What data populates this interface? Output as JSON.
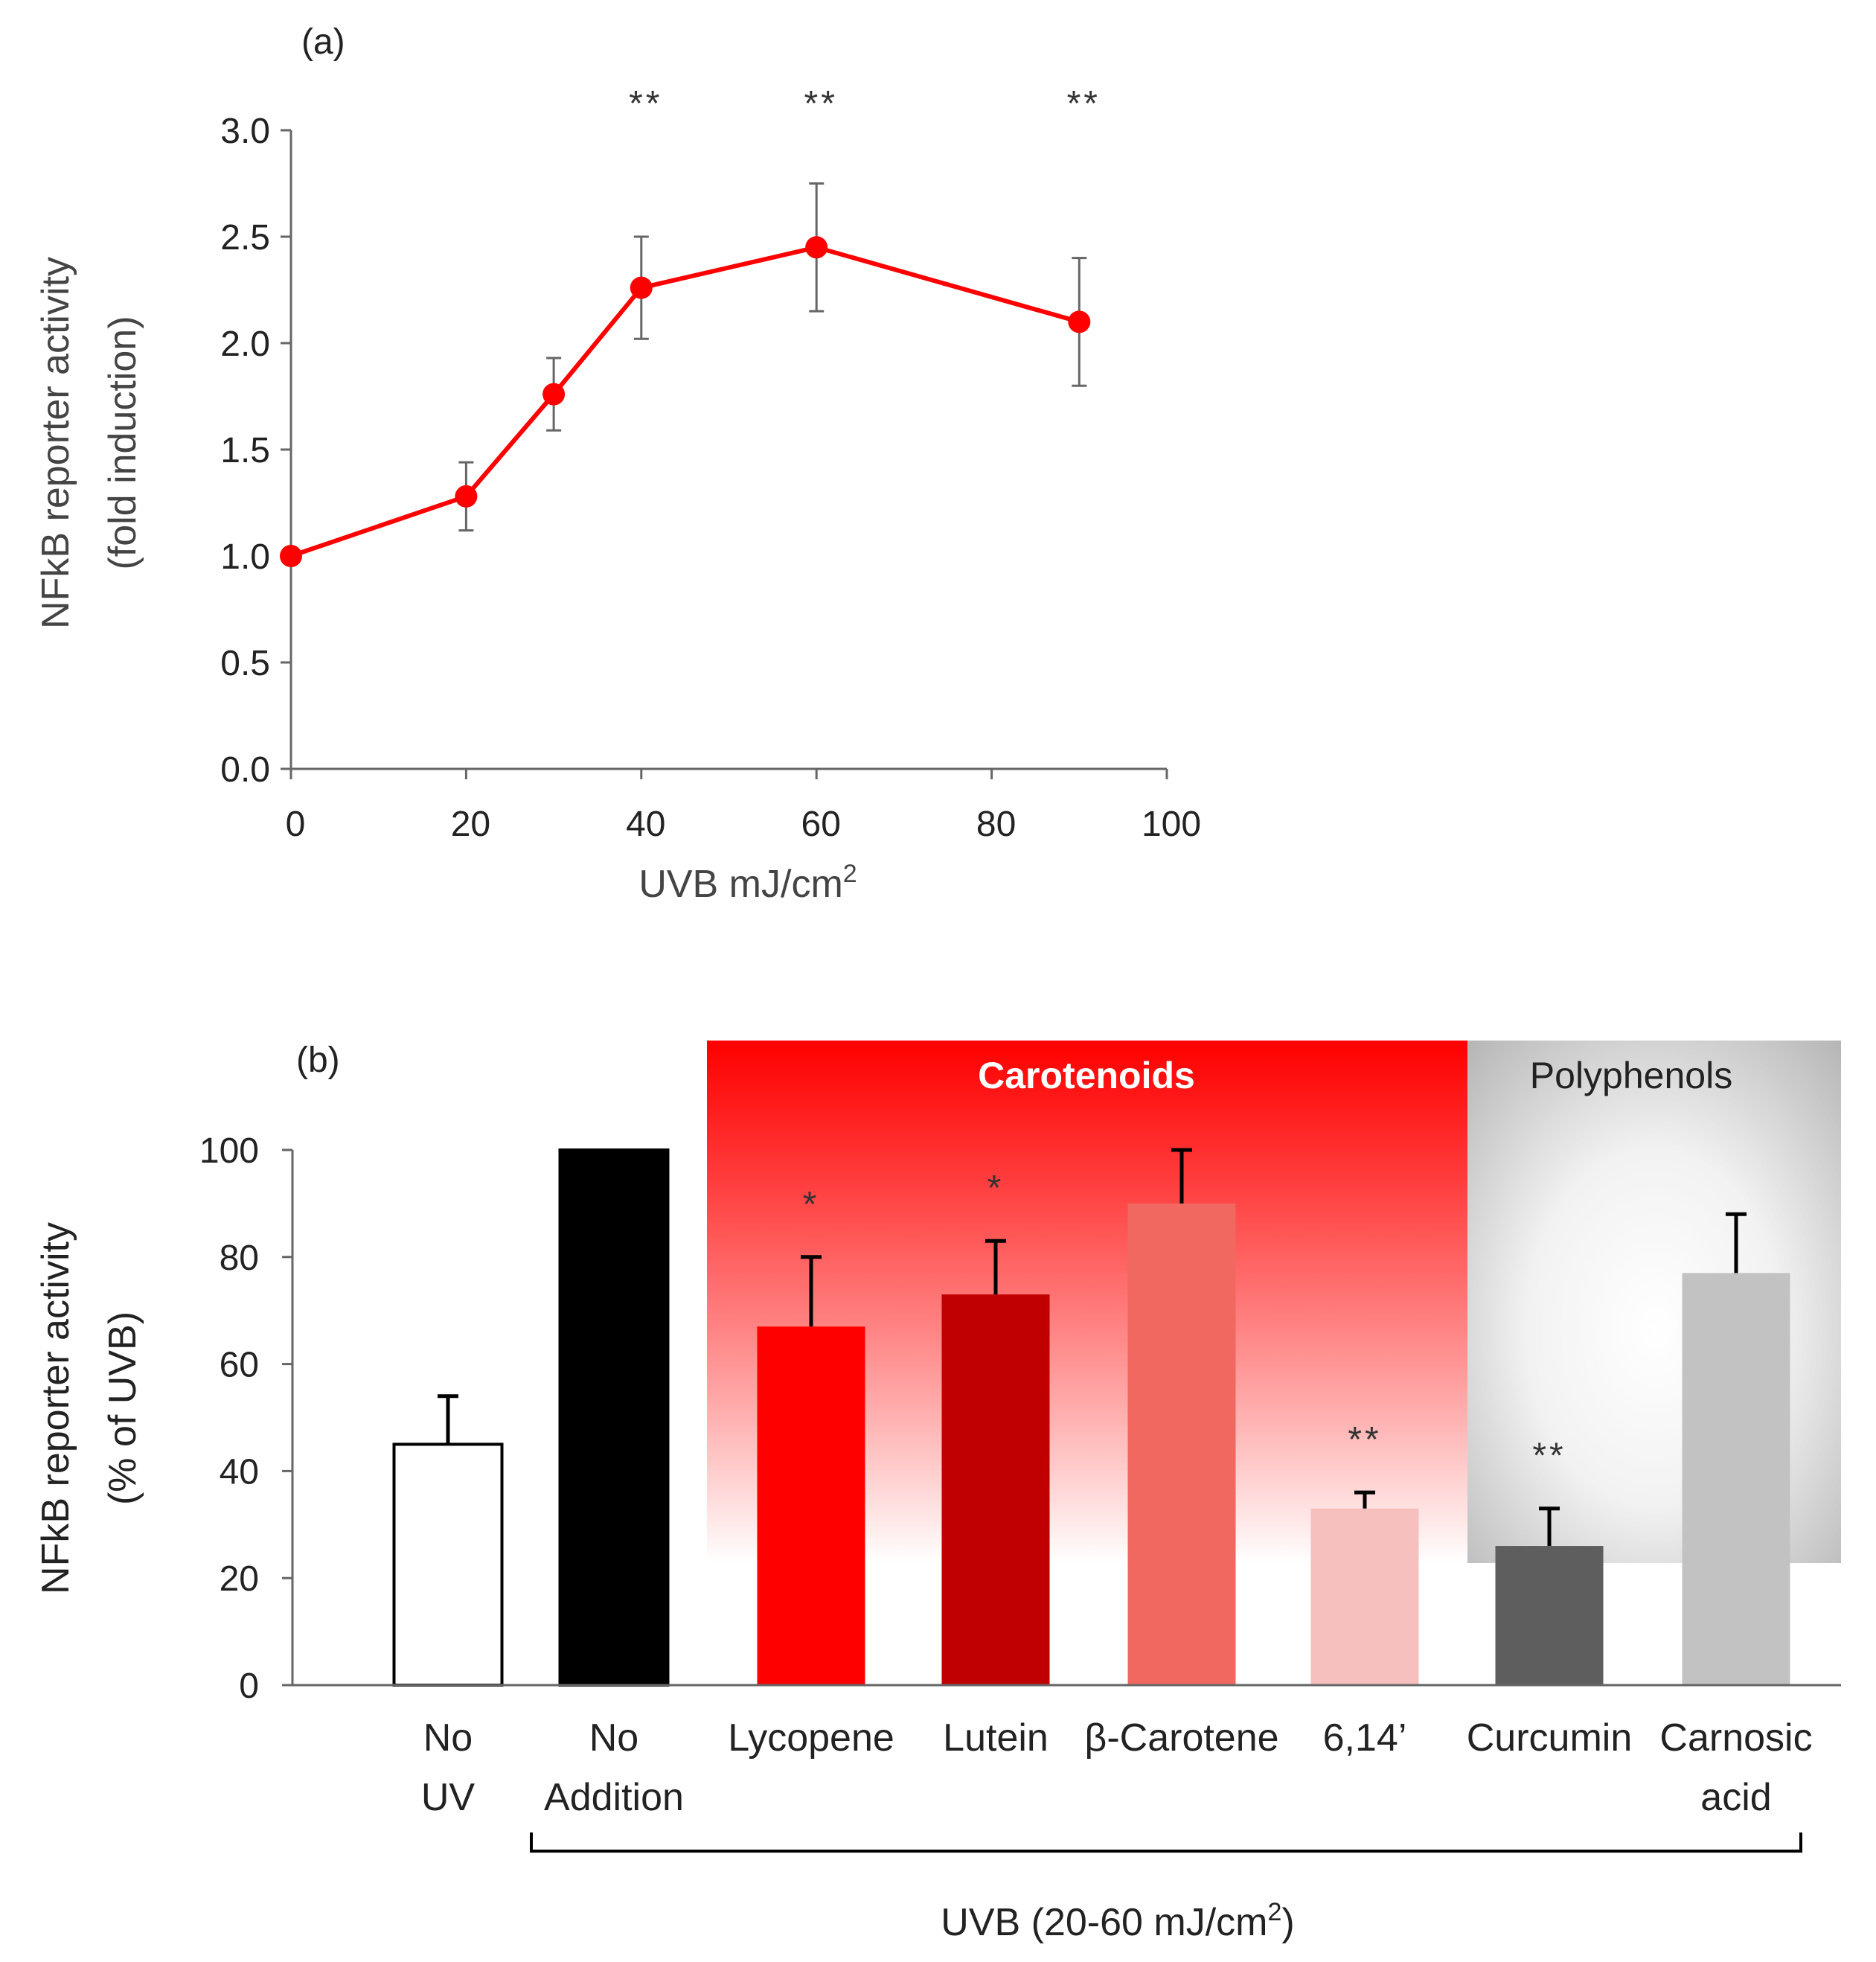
{
  "chart_data": [
    {
      "type": "line",
      "panel_label": "(a)",
      "xlabel": "UVB mJ/cm",
      "xlabel_sup": "2",
      "ylabel": "NFkB reporter activity",
      "ylabel2": "(fold induction)",
      "xlim": [
        0,
        100
      ],
      "ylim": [
        0,
        3.0
      ],
      "x_ticks": [
        "0",
        "20",
        "40",
        "60",
        "80",
        "100"
      ],
      "y_ticks": [
        "0.0",
        "0.5",
        "1.0",
        "1.5",
        "2.0",
        "2.5",
        "3.0"
      ],
      "series": [
        {
          "color": "#ff0000",
          "points": [
            {
              "x": 0,
              "y": 1.0,
              "err": 0
            },
            {
              "x": 20,
              "y": 1.28,
              "err": 0.16
            },
            {
              "x": 30,
              "y": 1.76,
              "err": 0.17
            },
            {
              "x": 40,
              "y": 2.26,
              "err": 0.24
            },
            {
              "x": 60,
              "y": 2.45,
              "err": 0.3
            },
            {
              "x": 90,
              "y": 2.1,
              "err": 0.3
            }
          ]
        }
      ],
      "annotations": [
        {
          "x": 40,
          "text": "**"
        },
        {
          "x": 60,
          "text": "**"
        },
        {
          "x": 90,
          "text": "**"
        }
      ],
      "grid": false
    },
    {
      "type": "bar",
      "panel_label": "(b)",
      "ylabel": "NFkB reporter activity",
      "ylabel2": "(% of UVB)",
      "ylim": [
        0,
        100
      ],
      "y_ticks": [
        "0",
        "20",
        "40",
        "60",
        "80",
        "100"
      ],
      "categories": [
        {
          "line1": "No",
          "line2": "UV"
        },
        {
          "line1": "No",
          "line2": "Addition"
        },
        {
          "line1": "Lycopene",
          "line2": ""
        },
        {
          "line1": "Lutein",
          "line2": ""
        },
        {
          "line1": "β-Carotene",
          "line2": ""
        },
        {
          "line1": "6,14’",
          "line2": ""
        },
        {
          "line1": "Curcumin",
          "line2": ""
        },
        {
          "line1": "Carnosic",
          "line2": "acid"
        }
      ],
      "values": [
        45,
        100,
        67,
        73,
        90,
        33,
        26,
        77
      ],
      "errors": [
        9,
        0,
        13,
        10,
        10,
        3,
        7,
        11
      ],
      "significance": [
        "",
        "",
        "*",
        "*",
        "",
        "**",
        "**",
        ""
      ],
      "bar_colors": [
        "#ffffff",
        "#000000",
        "#ff0000",
        "#c00000",
        "#f06860",
        "#f6c0be",
        "#5e5e5e",
        "#c2c2c2"
      ],
      "bar_outlines": [
        "#000000",
        "#000000",
        "none",
        "none",
        "none",
        "none",
        "none",
        "none"
      ],
      "groups": [
        {
          "label": "Carotenoids",
          "color": "#ff0000",
          "label_color": "#ffffff"
        },
        {
          "label": "Polyphenols",
          "color": "#bdbdbd",
          "label_color": "#222222"
        }
      ],
      "bracket_label": "UVB (20-60 mJ/cm",
      "bracket_label_sup": "2",
      "bracket_label_end": ")",
      "grid": false
    }
  ]
}
